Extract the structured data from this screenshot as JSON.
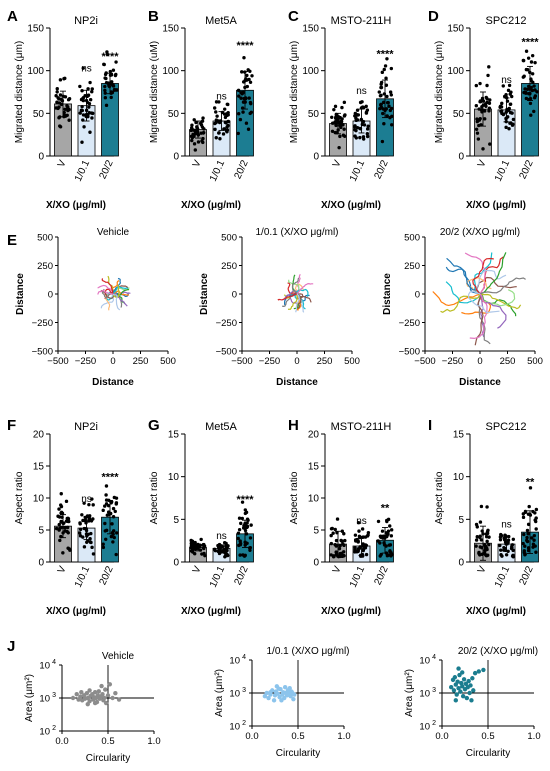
{
  "figure": {
    "xxo_label": "X/XO (μg/ml)",
    "distance_label": "Distance",
    "circularity_label": "Circularity",
    "migrated_um": "Migrated distance (μm)",
    "migrated_uM": "Migrated distance (uM)",
    "aspect_label": "Aspect ratio",
    "area_label": "Area (μm²)",
    "groups": [
      "V",
      "1/0.1",
      "20/2"
    ]
  },
  "colors": {
    "vehicle": "#a6a6a6",
    "low": "#dbe9f7",
    "high": "#1c7d92",
    "scatter_vehicle": "#8c8c8c",
    "scatter_low": "#8cc4ec",
    "scatter_high": "#1b7d8f",
    "dots": "#000000"
  },
  "chart_data": [
    {
      "panel": "A",
      "type": "bar",
      "title": "NP2i",
      "categories": [
        "V",
        "1/0.1",
        "20/2"
      ],
      "values": [
        61,
        59,
        85
      ],
      "errors": [
        15,
        18,
        12
      ],
      "sig": [
        "",
        "ns",
        "****"
      ],
      "ylim": [
        0,
        150
      ],
      "yticks": [
        0,
        50,
        100,
        150
      ],
      "ylabel": "Migrated distance (μm)",
      "xlabel": "X/XO (μg/ml)"
    },
    {
      "panel": "B",
      "type": "bar",
      "title": "Met5A",
      "categories": [
        "V",
        "1/0.1",
        "20/2"
      ],
      "values": [
        31,
        41,
        77
      ],
      "errors": [
        10,
        11,
        22
      ],
      "sig": [
        "",
        "ns",
        "****"
      ],
      "ylim": [
        0,
        150
      ],
      "yticks": [
        0,
        50,
        100,
        150
      ],
      "ylabel": "Migrated distance (uM)",
      "xlabel": "X/XO (μg/ml)"
    },
    {
      "panel": "C",
      "type": "bar",
      "title": "MSTO-211H",
      "categories": [
        "V",
        "1/0.1",
        "20/2"
      ],
      "values": [
        38,
        41,
        67
      ],
      "errors": [
        12,
        14,
        22
      ],
      "sig": [
        "",
        "ns",
        "****"
      ],
      "ylim": [
        0,
        150
      ],
      "yticks": [
        0,
        50,
        100,
        150
      ],
      "ylabel": "Migrated distance (μm)",
      "xlabel": "X/XO (μg/ml)"
    },
    {
      "panel": "D",
      "type": "bar",
      "title": "SPC212",
      "categories": [
        "V",
        "1/0.1",
        "20/2"
      ],
      "values": [
        55,
        54,
        85
      ],
      "errors": [
        20,
        14,
        20
      ],
      "sig": [
        "",
        "ns",
        "****"
      ],
      "ylim": [
        0,
        150
      ],
      "yticks": [
        0,
        50,
        100,
        150
      ],
      "ylabel": "Migrated distance (μm)",
      "xlabel": "X/XO (μg/ml)"
    },
    {
      "panel": "E",
      "type": "line",
      "subplots": [
        {
          "title": "Vehicle",
          "spread": 140
        },
        {
          "title": "1/0.1 (X/XO μg/ml)",
          "spread": 140
        },
        {
          "title": "20/2 (X/XO μg/ml)",
          "spread": 360
        }
      ],
      "xlim": [
        -500,
        500
      ],
      "ylim": [
        -500,
        500
      ],
      "xticks": [
        -500,
        -250,
        0,
        250,
        500
      ],
      "yticks": [
        -500,
        -250,
        0,
        250,
        500
      ],
      "xlabel": "Distance",
      "ylabel": "Distance"
    },
    {
      "panel": "F",
      "type": "bar",
      "title": "NP2i",
      "categories": [
        "V",
        "1/0.1",
        "20/2"
      ],
      "values": [
        5.6,
        5.3,
        7.0
      ],
      "errors": [
        1.8,
        1.8,
        2.6
      ],
      "sig": [
        "",
        "ns",
        "****"
      ],
      "ylim": [
        0,
        20
      ],
      "yticks": [
        0,
        5,
        10,
        15,
        20
      ],
      "ylabel": "Aspect ratio",
      "xlabel": "X/XO (μg/ml)"
    },
    {
      "panel": "G",
      "type": "bar",
      "title": "Met5A",
      "categories": [
        "V",
        "1/0.1",
        "20/2"
      ],
      "values": [
        1.7,
        1.6,
        3.3
      ],
      "errors": [
        0.4,
        0.4,
        1.6
      ],
      "sig": [
        "",
        "ns",
        "****"
      ],
      "ylim": [
        0,
        15
      ],
      "yticks": [
        0,
        5,
        10,
        15
      ],
      "ylabel": "Aspect ratio",
      "xlabel": "X/XO (μg/ml)"
    },
    {
      "panel": "H",
      "type": "bar",
      "title": "MSTO-211H",
      "categories": [
        "V",
        "1/0.1",
        "20/2"
      ],
      "values": [
        2.8,
        2.5,
        3.4
      ],
      "errors": [
        2.0,
        1.5,
        2.0
      ],
      "sig": [
        "",
        "ns",
        "**"
      ],
      "ylim": [
        0,
        20
      ],
      "yticks": [
        0,
        5,
        10,
        15,
        20
      ],
      "ylabel": "Aspect ratio",
      "xlabel": "X/XO (μg/ml)"
    },
    {
      "panel": "I",
      "type": "bar",
      "title": "SPC212",
      "categories": [
        "V",
        "1/0.1",
        "20/2"
      ],
      "values": [
        2.2,
        2.1,
        3.5
      ],
      "errors": [
        2.0,
        0.8,
        2.5
      ],
      "sig": [
        "",
        "ns",
        "**"
      ],
      "ylim": [
        0,
        15
      ],
      "yticks": [
        0,
        5,
        10,
        15
      ],
      "ylabel": "Aspect ratio",
      "xlabel": "X/XO (μg/ml)"
    },
    {
      "panel": "J",
      "type": "scatter",
      "subplots": [
        {
          "title": "Vehicle",
          "color_key": "scatter_vehicle",
          "points": [
            [
              0.12,
              1000
            ],
            [
              0.16,
              1300
            ],
            [
              0.18,
              900
            ],
            [
              0.2,
              1100
            ],
            [
              0.22,
              850
            ],
            [
              0.24,
              1200
            ],
            [
              0.25,
              950
            ],
            [
              0.27,
              1400
            ],
            [
              0.28,
              1000
            ],
            [
              0.3,
              800
            ],
            [
              0.31,
              1150
            ],
            [
              0.33,
              1300
            ],
            [
              0.34,
              900
            ],
            [
              0.35,
              1050
            ],
            [
              0.36,
              1500
            ],
            [
              0.37,
              1000
            ],
            [
              0.38,
              750
            ],
            [
              0.39,
              1200
            ],
            [
              0.4,
              1600
            ],
            [
              0.41,
              950
            ],
            [
              0.42,
              1100
            ],
            [
              0.43,
              2300
            ],
            [
              0.44,
              1300
            ],
            [
              0.45,
              850
            ],
            [
              0.46,
              1000
            ],
            [
              0.47,
              1800
            ],
            [
              0.48,
              700
            ],
            [
              0.5,
              1200
            ],
            [
              0.52,
              2600
            ],
            [
              0.55,
              1000
            ],
            [
              0.58,
              1400
            ],
            [
              0.62,
              900
            ],
            [
              0.3,
              1700
            ],
            [
              0.28,
              650
            ],
            [
              0.21,
              1500
            ],
            [
              0.36,
              700
            ]
          ]
        },
        {
          "title": "1/0.1 (X/XO μg/ml)",
          "color_key": "scatter_low",
          "points": [
            [
              0.14,
              800
            ],
            [
              0.16,
              1000
            ],
            [
              0.18,
              700
            ],
            [
              0.2,
              900
            ],
            [
              0.22,
              1200
            ],
            [
              0.24,
              600
            ],
            [
              0.25,
              850
            ],
            [
              0.26,
              1100
            ],
            [
              0.28,
              950
            ],
            [
              0.3,
              750
            ],
            [
              0.31,
              1300
            ],
            [
              0.33,
              900
            ],
            [
              0.34,
              1050
            ],
            [
              0.35,
              700
            ],
            [
              0.36,
              1500
            ],
            [
              0.37,
              1000
            ],
            [
              0.38,
              850
            ],
            [
              0.39,
              1200
            ],
            [
              0.4,
              950
            ],
            [
              0.41,
              1400
            ],
            [
              0.42,
              800
            ],
            [
              0.43,
              1100
            ],
            [
              0.44,
              1000
            ],
            [
              0.45,
              650
            ],
            [
              0.46,
              900
            ],
            [
              0.27,
              1600
            ],
            [
              0.32,
              600
            ],
            [
              0.2,
              1050
            ],
            [
              0.29,
              1350
            ]
          ]
        },
        {
          "title": "20/2 (X/XO μg/ml)",
          "color_key": "scatter_high",
          "points": [
            [
              0.1,
              1500
            ],
            [
              0.12,
              2500
            ],
            [
              0.13,
              1200
            ],
            [
              0.14,
              3000
            ],
            [
              0.15,
              1800
            ],
            [
              0.16,
              900
            ],
            [
              0.17,
              2200
            ],
            [
              0.18,
              1400
            ],
            [
              0.19,
              3500
            ],
            [
              0.2,
              1100
            ],
            [
              0.21,
              2000
            ],
            [
              0.22,
              1600
            ],
            [
              0.23,
              800
            ],
            [
              0.24,
              2600
            ],
            [
              0.25,
              1300
            ],
            [
              0.26,
              1900
            ],
            [
              0.27,
              700
            ],
            [
              0.28,
              1500
            ],
            [
              0.29,
              2300
            ],
            [
              0.3,
              1000
            ],
            [
              0.31,
              1700
            ],
            [
              0.32,
              600
            ],
            [
              0.34,
              1200
            ],
            [
              0.36,
              4000
            ],
            [
              0.4,
              4500
            ],
            [
              0.45,
              5000
            ],
            [
              0.18,
              5500
            ],
            [
              0.22,
              4200
            ],
            [
              0.15,
              600
            ],
            [
              0.33,
              2800
            ]
          ]
        }
      ],
      "xlim": [
        0,
        1
      ],
      "ylim": [
        100,
        10000
      ],
      "yscale": "log",
      "xticks": [
        0,
        0.5,
        1
      ],
      "yticks": [
        100,
        1000,
        10000
      ],
      "xlabel": "Circularity",
      "ylabel": "Area (μm²)"
    }
  ]
}
